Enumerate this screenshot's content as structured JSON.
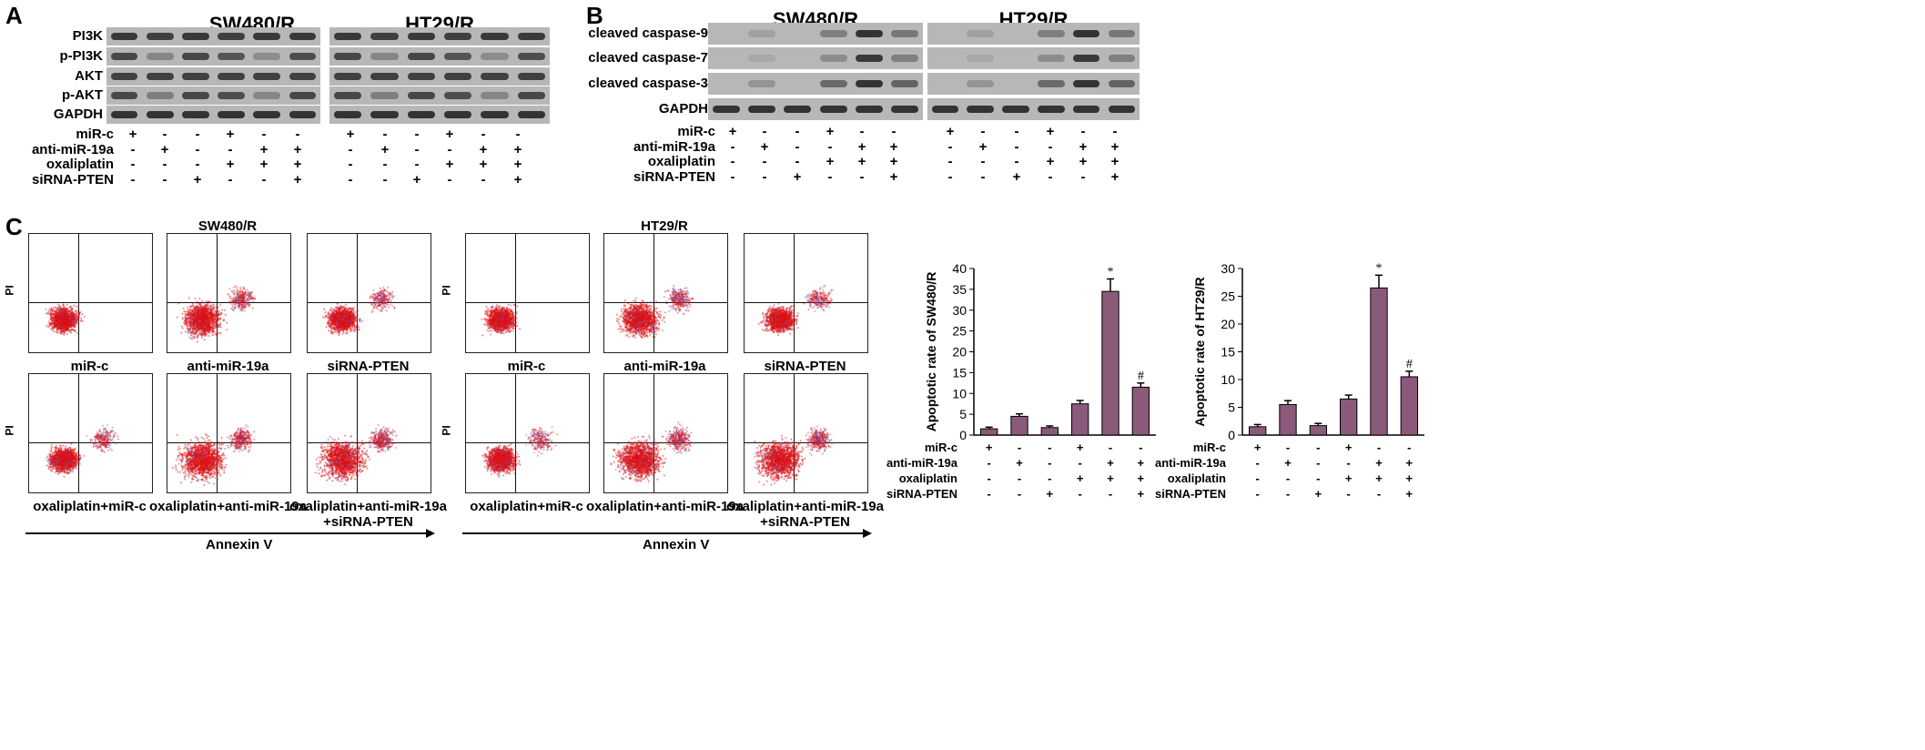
{
  "panelA": {
    "label": "A",
    "titles": [
      "SW480/R",
      "HT29/R"
    ],
    "rows": [
      "PI3K",
      "p-PI3K",
      "AKT",
      "p-AKT",
      "GAPDH"
    ],
    "treatments": [
      {
        "name": "miR-c",
        "signs": [
          "+",
          "-",
          "-",
          "+",
          "-",
          "-"
        ]
      },
      {
        "name": "anti-miR-19a",
        "signs": [
          "-",
          "+",
          "-",
          "-",
          "+",
          "+"
        ]
      },
      {
        "name": "oxaliplatin",
        "signs": [
          "-",
          "-",
          "-",
          "+",
          "+",
          "+"
        ]
      },
      {
        "name": "siRNA-PTEN",
        "signs": [
          "-",
          "-",
          "+",
          "-",
          "-",
          "+"
        ]
      }
    ]
  },
  "panelB": {
    "label": "B",
    "titles": [
      "SW480/R",
      "HT29/R"
    ],
    "rows": [
      "cleaved caspase-9",
      "cleaved caspase-7",
      "cleaved caspase-3",
      "GAPDH"
    ],
    "treatments": [
      {
        "name": "miR-c",
        "signs": [
          "+",
          "-",
          "-",
          "+",
          "-",
          "-"
        ]
      },
      {
        "name": "anti-miR-19a",
        "signs": [
          "-",
          "+",
          "-",
          "-",
          "+",
          "+"
        ]
      },
      {
        "name": "oxaliplatin",
        "signs": [
          "-",
          "-",
          "-",
          "+",
          "+",
          "+"
        ]
      },
      {
        "name": "siRNA-PTEN",
        "signs": [
          "-",
          "-",
          "+",
          "-",
          "-",
          "+"
        ]
      }
    ]
  },
  "panelC": {
    "label": "C",
    "groupTitles": [
      "SW480/R",
      "HT29/R"
    ],
    "yaxis": "PI",
    "xaxis": "Annexin V",
    "plotLabels": [
      "miR-c",
      "anti-miR-19a",
      "siRNA-PTEN",
      "oxaliplatin+miR-c",
      "oxaliplatin+anti-miR-19a",
      "oxaliplatin+anti-miR-19a",
      "+siRNA-PTEN"
    ],
    "treatments": [
      {
        "name": "miR-c",
        "signs": [
          "+",
          "-",
          "-",
          "+",
          "-",
          "-"
        ]
      },
      {
        "name": "anti-miR-19a",
        "signs": [
          "-",
          "+",
          "-",
          "-",
          "+",
          "+"
        ]
      },
      {
        "name": "oxaliplatin",
        "signs": [
          "-",
          "-",
          "-",
          "+",
          "+",
          "+"
        ]
      },
      {
        "name": "siRNA-PTEN",
        "signs": [
          "-",
          "-",
          "+",
          "-",
          "-",
          "+"
        ]
      }
    ]
  },
  "chart_data": [
    {
      "type": "bar",
      "ylabel": "Apoptotic rate of SW480/R",
      "ylim": [
        0,
        40
      ],
      "yticks": [
        0,
        5,
        10,
        15,
        20,
        25,
        30,
        35,
        40
      ],
      "values": [
        1.5,
        4.5,
        1.8,
        7.5,
        34.5,
        11.5
      ],
      "errors": [
        0.4,
        0.6,
        0.4,
        0.8,
        3.0,
        1.0
      ],
      "annotations": [
        "",
        "",
        "",
        "",
        "*",
        "#"
      ],
      "bar_color": "#8b5a7a"
    },
    {
      "type": "bar",
      "ylabel": "Apoptotic rate of HT29/R",
      "ylim": [
        0,
        30
      ],
      "yticks": [
        0,
        5,
        10,
        15,
        20,
        25,
        30
      ],
      "values": [
        1.5,
        5.5,
        1.7,
        6.5,
        26.5,
        10.5
      ],
      "errors": [
        0.4,
        0.7,
        0.4,
        0.7,
        2.3,
        1.0
      ],
      "annotations": [
        "",
        "",
        "",
        "",
        "*",
        "#"
      ],
      "bar_color": "#8b5a7a"
    }
  ]
}
